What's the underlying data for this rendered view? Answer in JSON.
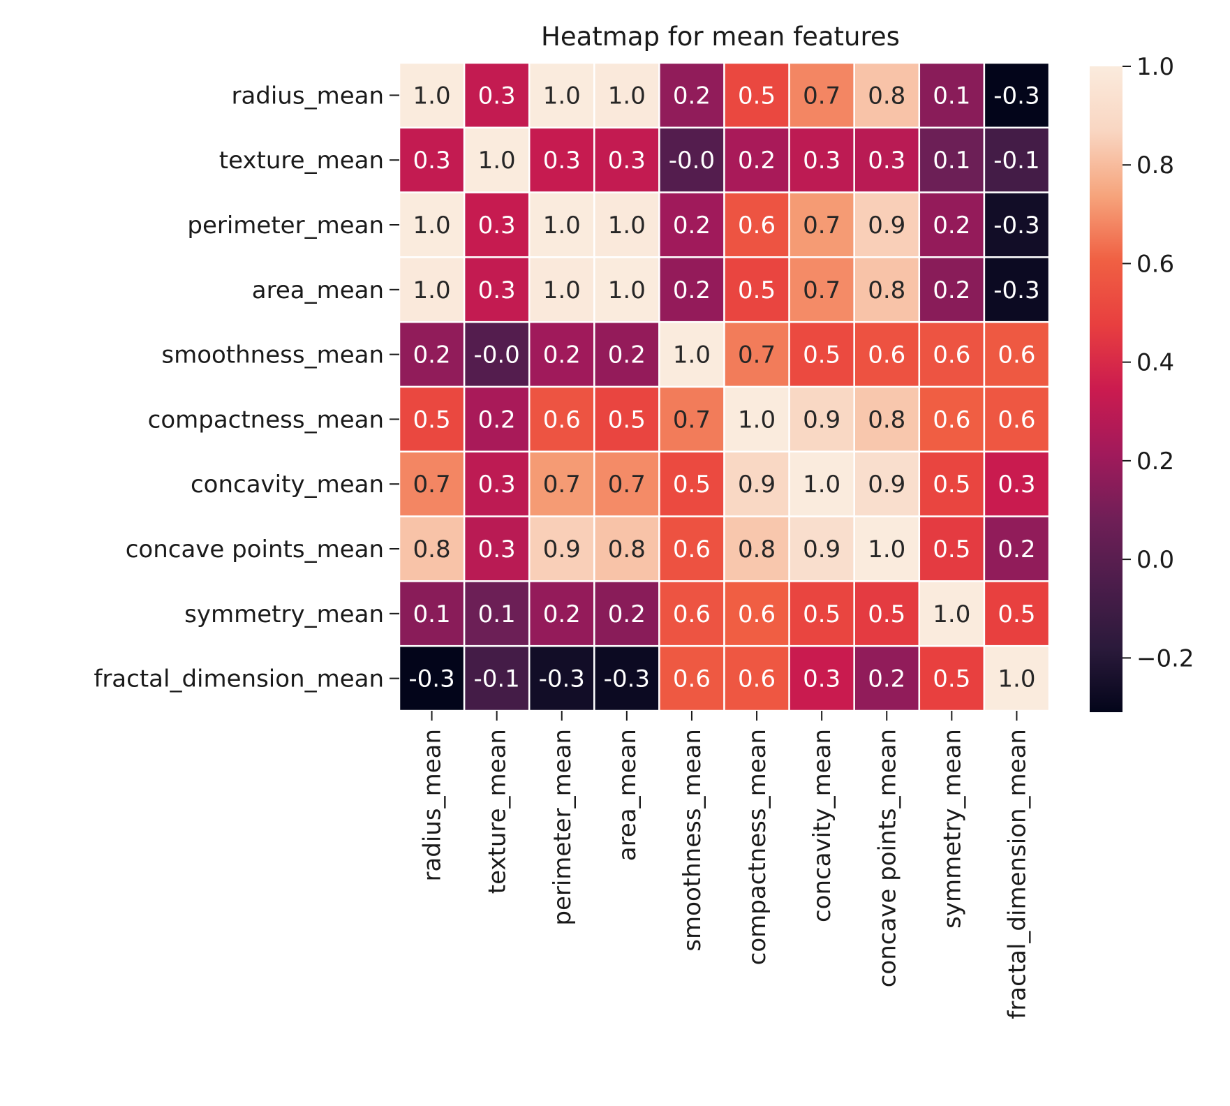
{
  "chart_data": {
    "type": "heatmap",
    "title": "Heatmap for mean features",
    "xlabel": "",
    "ylabel": "",
    "categories": [
      "radius_mean",
      "texture_mean",
      "perimeter_mean",
      "area_mean",
      "smoothness_mean",
      "compactness_mean",
      "concavity_mean",
      "concave points_mean",
      "symmetry_mean",
      "fractal_dimension_mean"
    ],
    "labels": [
      [
        "1.0",
        "0.3",
        "1.0",
        "1.0",
        "0.2",
        "0.5",
        "0.7",
        "0.8",
        "0.1",
        "-0.3"
      ],
      [
        "0.3",
        "1.0",
        "0.3",
        "0.3",
        "-0.0",
        "0.2",
        "0.3",
        "0.3",
        "0.1",
        "-0.1"
      ],
      [
        "1.0",
        "0.3",
        "1.0",
        "1.0",
        "0.2",
        "0.6",
        "0.7",
        "0.9",
        "0.2",
        "-0.3"
      ],
      [
        "1.0",
        "0.3",
        "1.0",
        "1.0",
        "0.2",
        "0.5",
        "0.7",
        "0.8",
        "0.2",
        "-0.3"
      ],
      [
        "0.2",
        "-0.0",
        "0.2",
        "0.2",
        "1.0",
        "0.7",
        "0.5",
        "0.6",
        "0.6",
        "0.6"
      ],
      [
        "0.5",
        "0.2",
        "0.6",
        "0.5",
        "0.7",
        "1.0",
        "0.9",
        "0.8",
        "0.6",
        "0.6"
      ],
      [
        "0.7",
        "0.3",
        "0.7",
        "0.7",
        "0.5",
        "0.9",
        "1.0",
        "0.9",
        "0.5",
        "0.3"
      ],
      [
        "0.8",
        "0.3",
        "0.9",
        "0.8",
        "0.6",
        "0.8",
        "0.9",
        "1.0",
        "0.5",
        "0.2"
      ],
      [
        "0.1",
        "0.1",
        "0.2",
        "0.2",
        "0.6",
        "0.6",
        "0.5",
        "0.5",
        "1.0",
        "0.5"
      ],
      [
        "-0.3",
        "-0.1",
        "-0.3",
        "-0.3",
        "0.6",
        "0.6",
        "0.3",
        "0.2",
        "0.5",
        "1.0"
      ]
    ],
    "values": [
      [
        1.0,
        0.32,
        1.0,
        0.99,
        0.17,
        0.51,
        0.68,
        0.82,
        0.15,
        -0.31
      ],
      [
        0.32,
        1.0,
        0.33,
        0.32,
        -0.02,
        0.24,
        0.3,
        0.29,
        0.07,
        -0.08
      ],
      [
        1.0,
        0.33,
        1.0,
        0.99,
        0.21,
        0.56,
        0.72,
        0.85,
        0.18,
        -0.26
      ],
      [
        0.99,
        0.32,
        0.99,
        1.0,
        0.18,
        0.5,
        0.69,
        0.82,
        0.15,
        -0.28
      ],
      [
        0.17,
        -0.02,
        0.21,
        0.18,
        1.0,
        0.66,
        0.52,
        0.55,
        0.56,
        0.58
      ],
      [
        0.51,
        0.24,
        0.56,
        0.5,
        0.66,
        1.0,
        0.88,
        0.83,
        0.6,
        0.57
      ],
      [
        0.68,
        0.3,
        0.72,
        0.69,
        0.52,
        0.88,
        1.0,
        0.92,
        0.5,
        0.34
      ],
      [
        0.82,
        0.29,
        0.85,
        0.82,
        0.55,
        0.83,
        0.92,
        1.0,
        0.46,
        0.17
      ],
      [
        0.15,
        0.07,
        0.18,
        0.15,
        0.56,
        0.6,
        0.5,
        0.46,
        1.0,
        0.48
      ],
      [
        -0.31,
        -0.08,
        -0.26,
        -0.28,
        0.58,
        0.57,
        0.34,
        0.17,
        0.48,
        1.0
      ]
    ],
    "colorbar": {
      "range": [
        -0.31,
        1.0
      ],
      "ticks": [
        1.0,
        0.8,
        0.6,
        0.4,
        0.2,
        0.0,
        -0.2
      ],
      "tick_labels": [
        "1.0",
        "0.8",
        "0.6",
        "0.4",
        "0.2",
        "0.0",
        "−0.2"
      ],
      "colormap": "rocket",
      "stops": [
        "#03051a",
        "#2b1a3b",
        "#4c1d4b",
        "#701f57",
        "#a11a5b",
        "#cb1b4f",
        "#e83f3f",
        "#f06043",
        "#f6a47c",
        "#f9d6c2",
        "#faebdd"
      ]
    },
    "grid": false,
    "cell_border_color": "#ffffff"
  }
}
